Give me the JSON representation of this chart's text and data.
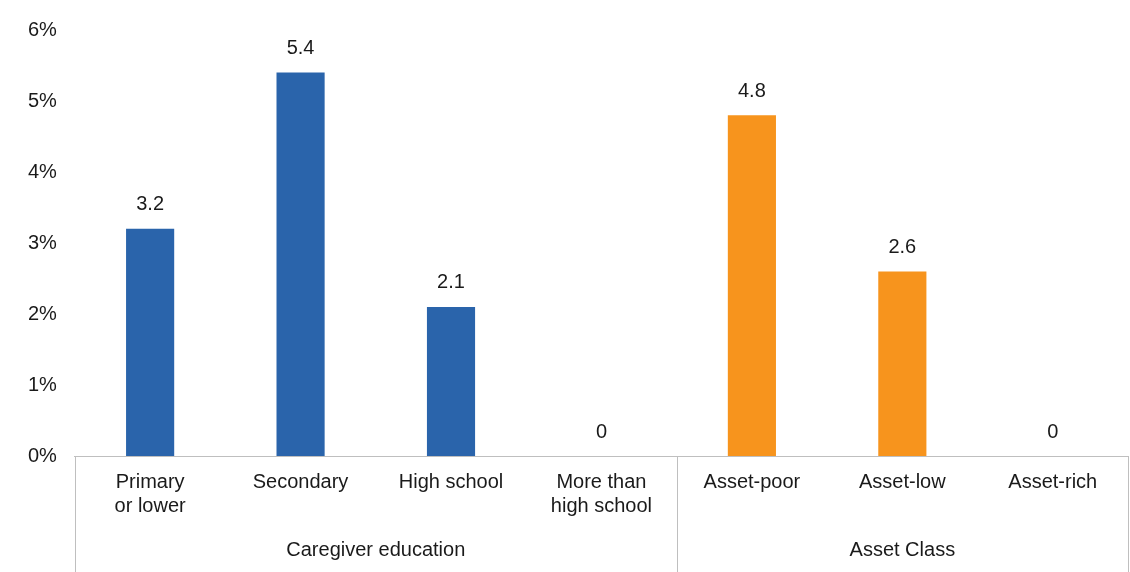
{
  "chart_data": {
    "type": "bar",
    "categories": [
      "Primary or lower",
      "Secondary",
      "High school",
      "More than high school",
      "Asset-poor",
      "Asset-low",
      "Asset-rich"
    ],
    "values": [
      3.2,
      5.4,
      2.1,
      0,
      4.8,
      2.6,
      0
    ],
    "colors": [
      "#2a64ab",
      "#2a64ab",
      "#2a64ab",
      "#2a64ab",
      "#f7941d",
      "#f7941d",
      "#f7941d"
    ],
    "annotations": [
      "Caregiver education",
      "Asset Class"
    ],
    "ylim": [
      0,
      6
    ],
    "yticks": [
      {
        "value": 0,
        "label": "0%"
      },
      {
        "value": 1,
        "label": "1%"
      },
      {
        "value": 2,
        "label": "2%"
      },
      {
        "value": 3,
        "label": "3%"
      },
      {
        "value": 4,
        "label": "4%"
      },
      {
        "value": 5,
        "label": "5%"
      },
      {
        "value": 6,
        "label": "6%"
      }
    ],
    "data_labels": true,
    "grid": false,
    "legend": false
  }
}
